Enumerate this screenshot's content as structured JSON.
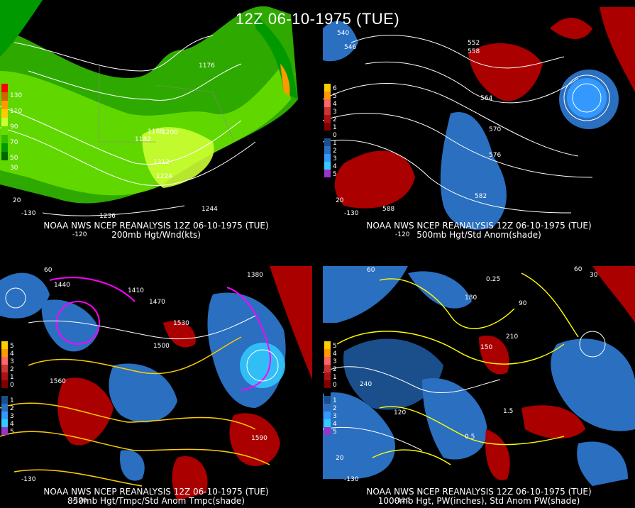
{
  "title": "12Z 06-10-1975 (TUE)",
  "panels": [
    {
      "source": "NOAA NWS NCEP REANALYSIS 12Z 06-10-1975 (TUE)",
      "field": "200mb Hgt/Wnd(kts)",
      "legend_labels": [
        "130",
        "110",
        "90",
        "70",
        "50",
        "30"
      ],
      "legend_colors": [
        "#ff0000",
        "#cc6600",
        "#ff9900",
        "#ffcc00",
        "#ccff33",
        "#66dd00",
        "#33bb00",
        "#009900",
        "#006600"
      ],
      "contour_labels": [
        "1176",
        "1182",
        "1188",
        "1200",
        "1212",
        "1224",
        "1236",
        "1244"
      ],
      "lon_labels": [
        "-130",
        "-120",
        "20"
      ]
    },
    {
      "source": "NOAA NWS NCEP REANALYSIS 12Z 06-10-1975 (TUE)",
      "field": "500mb Hgt/Std Anom(shade)",
      "legend_labels": [
        "6",
        "5",
        "4",
        "3",
        "2",
        "1",
        "0",
        "1",
        "2",
        "3",
        "4",
        "5"
      ],
      "legend_colors": [
        "#ffcc00",
        "#ff9900",
        "#ff6666",
        "#cc3333",
        "#aa1111",
        "#800000",
        "#000000",
        "#1a4f8c",
        "#2a6fc0",
        "#3399ff",
        "#33ccff",
        "#9933cc"
      ],
      "contour_labels": [
        "540",
        "546",
        "552",
        "558",
        "564",
        "570",
        "576",
        "582",
        "588"
      ],
      "lon_labels": [
        "-130",
        "-120",
        "20"
      ]
    },
    {
      "source": "NOAA NWS NCEP REANALYSIS 12Z 06-10-1975 (TUE)",
      "field": "850mb Hgt/Tmpc/Std Anom Tmpc(shade)",
      "legend_labels": [
        "5",
        "4",
        "3",
        "2",
        "1",
        "0",
        "1",
        "2",
        "3",
        "4",
        "5"
      ],
      "legend_colors": [
        "#ffcc00",
        "#ff9900",
        "#ff6666",
        "#cc3333",
        "#aa1111",
        "#800000",
        "#000000",
        "#1a4f8c",
        "#2a6fc0",
        "#3399ff",
        "#33ccff",
        "#9933cc"
      ],
      "contour_labels": [
        "1380",
        "1410",
        "1440",
        "1470",
        "1500",
        "1530",
        "1560",
        "1590"
      ],
      "lon_labels": [
        "60",
        "-130",
        "-120"
      ]
    },
    {
      "source": "NOAA NWS NCEP REANALYSIS 12Z 06-10-1975 (TUE)",
      "field": "1000mb Hgt, PW(inches), Std Anom PW(shade)",
      "legend_labels": [
        "5",
        "4",
        "3",
        "2",
        "1",
        "0",
        "1",
        "2",
        "3",
        "4",
        "5"
      ],
      "legend_colors": [
        "#ffcc00",
        "#ff9900",
        "#ff6666",
        "#cc3333",
        "#aa1111",
        "#800000",
        "#000000",
        "#1a4f8c",
        "#2a6fc0",
        "#3399ff",
        "#33ccff",
        "#9933cc"
      ],
      "contour_labels": [
        "0.25",
        "0.5",
        "1.5",
        "30",
        "60",
        "90",
        "120",
        "150",
        "180",
        "210",
        "240"
      ],
      "lon_labels": [
        "60",
        "-130",
        "-120",
        "20"
      ]
    }
  ],
  "colors": {
    "contour": "#ffffff",
    "temp_contour": "#ffcc00",
    "freezing": "#ff00ff",
    "green_light": "#ccff33",
    "green": "#33bb00",
    "green_dark": "#009900",
    "warm": "#aa0000",
    "cold": "#2a6fc0",
    "cold_core": "#33ccff",
    "pw_contour": "#ffff00"
  }
}
